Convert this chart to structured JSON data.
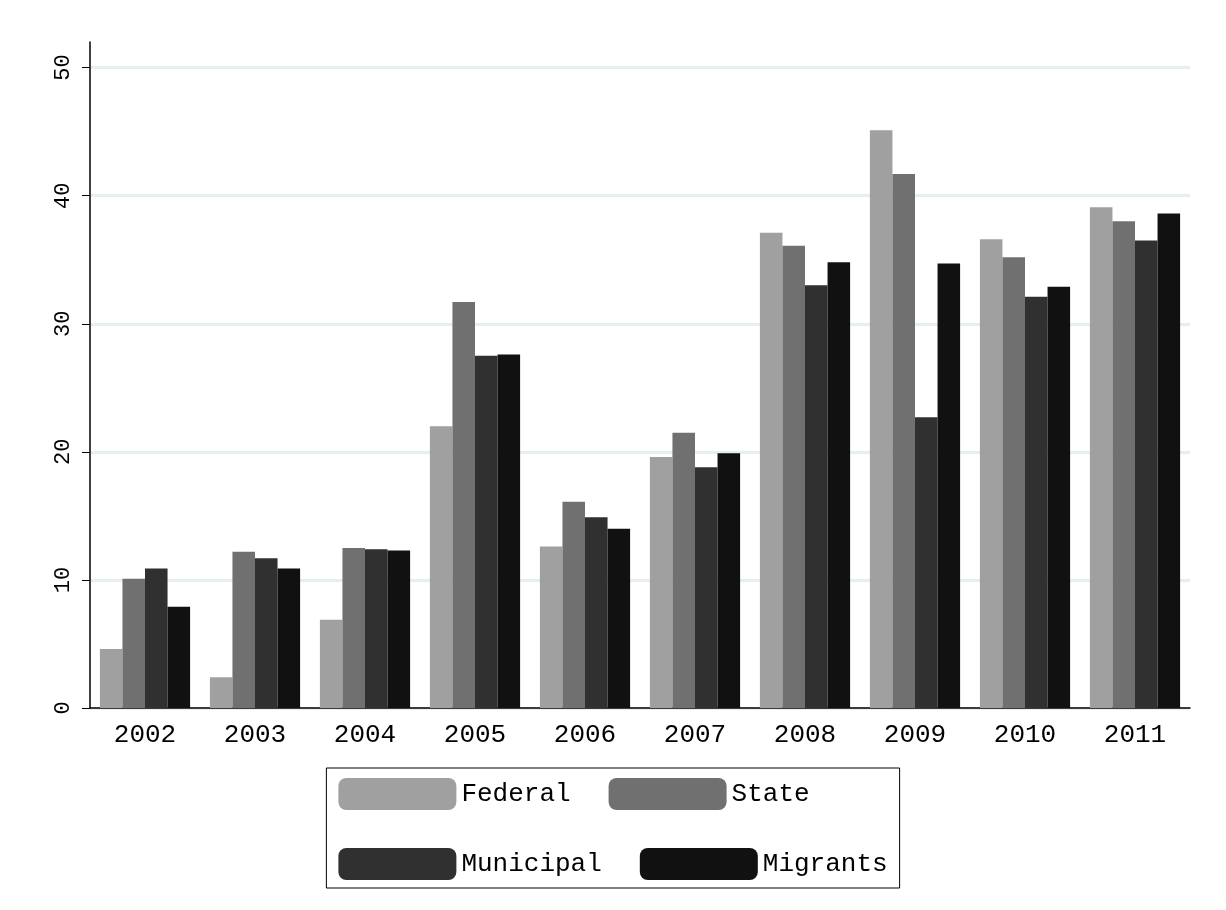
{
  "chart_data": {
    "type": "bar",
    "categories": [
      "2002",
      "2003",
      "2004",
      "2005",
      "2006",
      "2007",
      "2008",
      "2009",
      "2010",
      "2011"
    ],
    "series": [
      {
        "name": "Federal",
        "color": "#a0a0a0",
        "values": [
          4.6,
          2.4,
          6.9,
          22.0,
          12.6,
          19.6,
          37.1,
          45.1,
          36.6,
          39.1
        ]
      },
      {
        "name": "State",
        "color": "#707070",
        "values": [
          10.1,
          12.2,
          12.5,
          31.7,
          16.1,
          21.5,
          36.1,
          41.7,
          35.2,
          38.0
        ]
      },
      {
        "name": "Municipal",
        "color": "#303030",
        "values": [
          10.9,
          11.7,
          12.4,
          27.5,
          14.9,
          18.8,
          33.0,
          22.7,
          32.1,
          36.5
        ]
      },
      {
        "name": "Migrants",
        "color": "#111111",
        "values": [
          7.9,
          10.9,
          12.3,
          27.6,
          14.0,
          19.9,
          34.8,
          34.7,
          32.9,
          38.6
        ]
      }
    ],
    "ylim": [
      0,
      52
    ],
    "yticks": [
      0,
      10,
      20,
      30,
      40,
      50
    ],
    "grid": "y",
    "legend": "bottom"
  }
}
